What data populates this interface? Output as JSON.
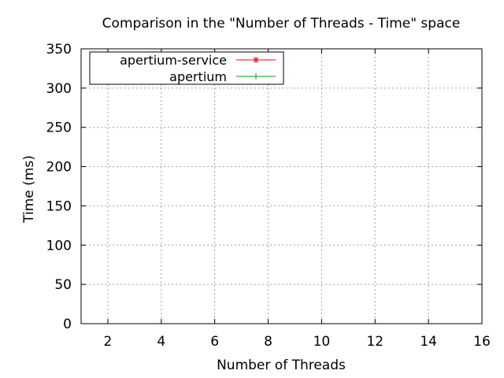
{
  "chart_data": {
    "type": "line",
    "title": "Comparison in the \"Number of Threads - Time\" space",
    "xlabel": "Number of Threads",
    "ylabel": "Time (ms)",
    "xlim": [
      1,
      16
    ],
    "ylim": [
      0,
      350
    ],
    "xticks": [
      2,
      4,
      6,
      8,
      10,
      12,
      14,
      16
    ],
    "yticks": [
      0,
      50,
      100,
      150,
      200,
      250,
      300,
      350
    ],
    "grid": true,
    "legend_position": "top-left",
    "series": [
      {
        "name": "apertium-service",
        "color": "#ff0000",
        "marker": "asterisk",
        "x": [],
        "y": []
      },
      {
        "name": "apertium",
        "color": "#00a000",
        "marker": "plus",
        "x": [],
        "y": []
      }
    ]
  }
}
